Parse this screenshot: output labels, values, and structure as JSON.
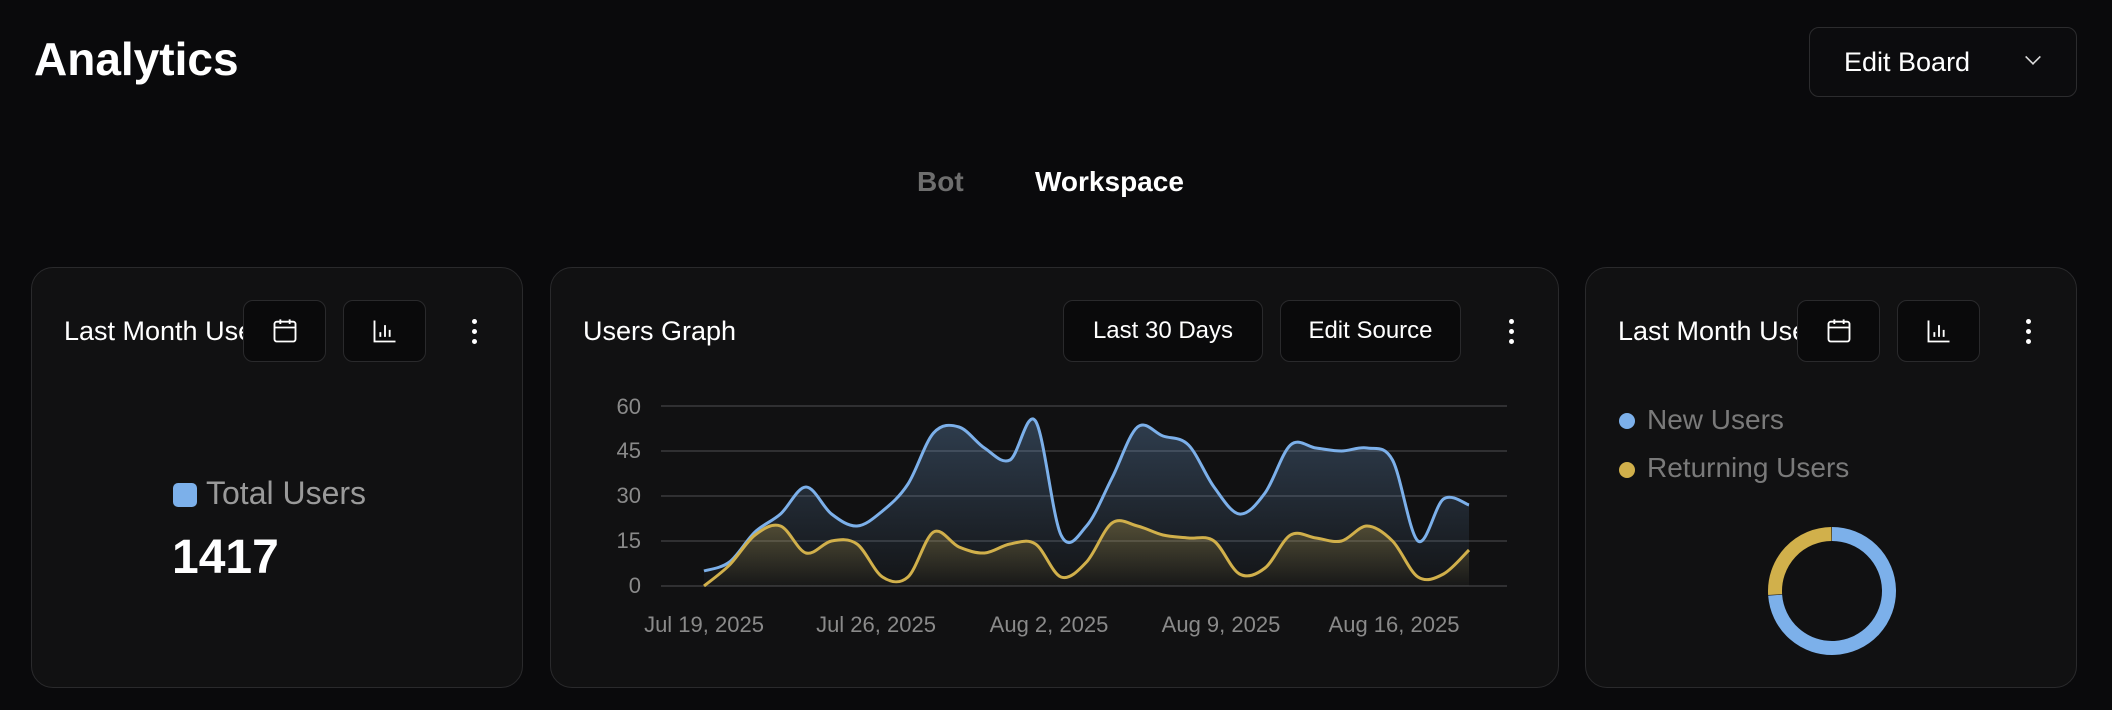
{
  "header": {
    "title": "Analytics",
    "edit_board_label": "Edit Board"
  },
  "tabs": [
    {
      "label": "Bot",
      "active": false
    },
    {
      "label": "Workspace",
      "active": true
    }
  ],
  "cards": {
    "total": {
      "title": "Last Month Users",
      "legend": "Total Users",
      "value": "1417",
      "legend_color": "#7cb0ea"
    },
    "graph": {
      "title": "Users Graph",
      "range_label": "Last 30 Days",
      "edit_source_label": "Edit Source"
    },
    "split": {
      "title": "Last Month Users",
      "legend": [
        {
          "label": "New Users",
          "color": "#7cb0ea"
        },
        {
          "label": "Returning Users",
          "color": "#d1b04b"
        }
      ]
    }
  },
  "chart_data": [
    {
      "type": "area",
      "title": "Users Graph",
      "ylim": [
        0,
        60
      ],
      "yticks": [
        "60",
        "45",
        "30",
        "15",
        "0"
      ],
      "grid": true,
      "xticks": [
        "Jul 19, 2025",
        "Jul 26, 2025",
        "Aug 2, 2025",
        "Aug 9, 2025",
        "Aug 16, 2025"
      ],
      "x_start": "2025-07-19",
      "x_end": "2025-08-18",
      "series": [
        {
          "color": "#7cb0ea",
          "values": [
            5,
            8,
            18,
            24,
            33,
            24,
            20,
            25,
            34,
            51,
            53,
            46,
            42,
            55,
            17,
            20,
            36,
            53,
            50,
            47,
            33,
            24,
            31,
            47,
            46,
            45,
            46,
            42,
            15,
            29,
            27
          ]
        },
        {
          "color": "#d1b04b",
          "values": [
            0,
            7,
            17,
            20,
            11,
            15,
            14,
            3,
            3,
            18,
            13,
            11,
            14,
            14,
            3,
            8,
            21,
            20,
            17,
            16,
            15,
            4,
            6,
            17,
            16,
            15,
            20,
            15,
            3,
            4,
            12
          ]
        }
      ]
    },
    {
      "type": "pie",
      "donut": true,
      "slices": [
        {
          "name": "New Users",
          "fraction": 0.74,
          "color": "#7cb0ea"
        },
        {
          "name": "Returning Users",
          "fraction": 0.26,
          "color": "#d1b04b"
        }
      ]
    }
  ]
}
